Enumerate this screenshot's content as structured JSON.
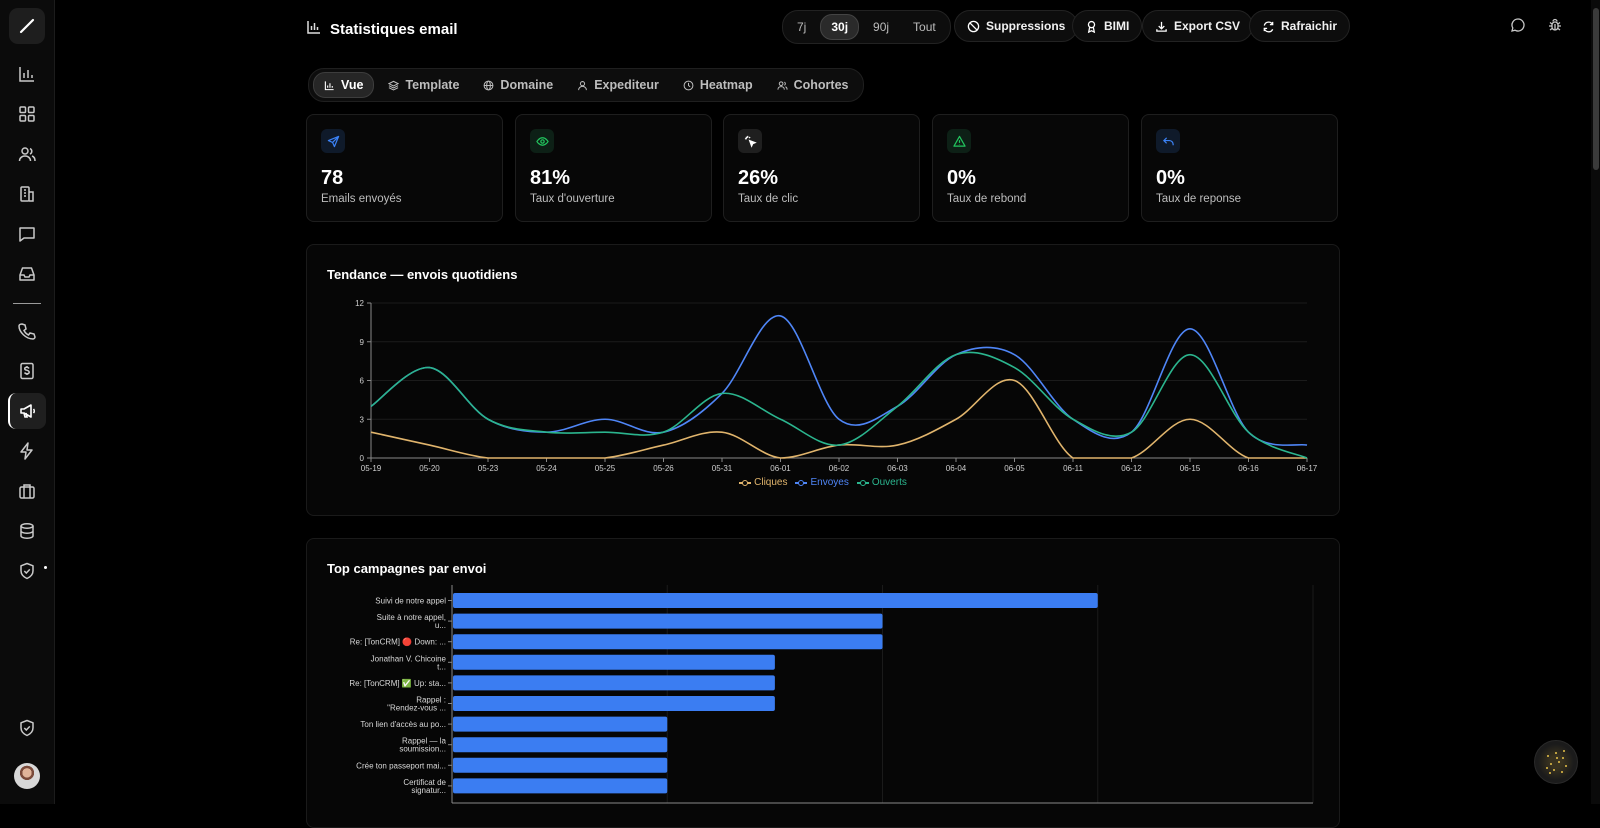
{
  "sidebar": {
    "items": [
      {
        "name": "logo",
        "icon": "pen-icon"
      },
      {
        "name": "analytics",
        "icon": "bar-chart-icon"
      },
      {
        "name": "dashboard",
        "icon": "grid-icon"
      },
      {
        "name": "contacts",
        "icon": "users-icon"
      },
      {
        "name": "companies",
        "icon": "building-icon"
      },
      {
        "name": "messages",
        "icon": "chat-icon"
      },
      {
        "name": "inbox",
        "icon": "inbox-icon"
      },
      {
        "name": "calls",
        "icon": "phone-icon"
      },
      {
        "name": "billing",
        "icon": "dollar-icon"
      },
      {
        "name": "campaigns",
        "icon": "megaphone-icon",
        "active": true
      },
      {
        "name": "automations",
        "icon": "lightning-icon"
      },
      {
        "name": "projects",
        "icon": "briefcase-icon"
      },
      {
        "name": "database",
        "icon": "database-icon"
      },
      {
        "name": "security",
        "icon": "shield-icon"
      },
      {
        "name": "admin",
        "icon": "shield-icon"
      }
    ]
  },
  "header": {
    "title": "Statistiques email",
    "ranges": [
      "7j",
      "30j",
      "90j",
      "Tout"
    ],
    "selected_range": "30j",
    "buttons": {
      "suppressions": "Suppressions",
      "bimi": "BIMI",
      "export": "Export CSV",
      "refresh": "Rafraichir"
    }
  },
  "tabs": [
    {
      "label": "Vue",
      "icon": "bar-chart-icon",
      "active": true
    },
    {
      "label": "Template",
      "icon": "layers-icon"
    },
    {
      "label": "Domaine",
      "icon": "globe-icon"
    },
    {
      "label": "Expediteur",
      "icon": "user-icon"
    },
    {
      "label": "Heatmap",
      "icon": "clock-icon"
    },
    {
      "label": "Cohortes",
      "icon": "users-icon"
    }
  ],
  "kpis": [
    {
      "value": "78",
      "label": "Emails envoyés",
      "icon": "send-icon",
      "color": "#3b82f6",
      "bg": "#0f1a2a"
    },
    {
      "value": "81%",
      "label": "Taux d'ouverture",
      "icon": "eye-icon",
      "color": "#22c55e",
      "bg": "#0d2016"
    },
    {
      "value": "26%",
      "label": "Taux de clic",
      "icon": "cursor-click-icon",
      "color": "#ffffff",
      "bg": "#1f1f1f"
    },
    {
      "value": "0%",
      "label": "Taux de rebond",
      "icon": "warning-icon",
      "color": "#22c55e",
      "bg": "#0d2016"
    },
    {
      "value": "0%",
      "label": "Taux de reponse",
      "icon": "reply-icon",
      "color": "#3b82f6",
      "bg": "#0f1a2a"
    }
  ],
  "trend_title": "Tendance — envois quotidiens",
  "campaigns_title": "Top campagnes par envoi",
  "colors": {
    "cliques": "#e0b46c",
    "envoyes": "#4f86f7",
    "ouverts": "#2bb58e",
    "bar": "#3b7df2"
  },
  "chart_data": [
    {
      "type": "line",
      "title": "Tendance — envois quotidiens",
      "x": [
        "05-19",
        "05-20",
        "05-23",
        "05-24",
        "05-25",
        "05-26",
        "05-31",
        "06-01",
        "06-02",
        "06-03",
        "06-04",
        "06-05",
        "06-11",
        "06-12",
        "06-15",
        "06-16",
        "06-17"
      ],
      "ylim": [
        0,
        12
      ],
      "yticks": [
        0,
        3,
        6,
        9,
        12
      ],
      "grid": true,
      "legend": "bottom",
      "series": [
        {
          "name": "Cliques",
          "values": [
            2,
            1,
            0,
            0,
            0,
            1,
            2,
            0,
            1,
            1,
            3,
            6,
            0,
            0,
            3,
            0,
            0
          ]
        },
        {
          "name": "Envoyes",
          "values": [
            4,
            7,
            3,
            2,
            3,
            2,
            5,
            11,
            3,
            4,
            8,
            8,
            3,
            2,
            10,
            2,
            1
          ]
        },
        {
          "name": "Ouverts",
          "values": [
            4,
            7,
            3,
            2,
            2,
            2,
            5,
            3,
            1,
            4,
            8,
            7,
            3,
            2,
            8,
            2,
            0
          ]
        }
      ]
    },
    {
      "type": "bar",
      "orientation": "horizontal",
      "title": "Top campagnes par envoi",
      "categories": [
        [
          "Suivi de notre appel"
        ],
        [
          "Suite à notre appel,",
          "u..."
        ],
        [
          "Re: [TonCRM] 🔴 Down: ..."
        ],
        [
          "Jonathan V. Chicoine",
          "t..."
        ],
        [
          "Re: [TonCRM] ✅ Up: sta..."
        ],
        [
          "Rappel :",
          "\"Rendez-vous ..."
        ],
        [
          "Ton lien d'accès au po..."
        ],
        [
          "Rappel — la",
          "soumission..."
        ],
        [
          "Crée ton passeport mai..."
        ],
        [
          "Certificat de",
          "signatur..."
        ]
      ],
      "values": [
        6,
        4,
        4,
        3,
        3,
        3,
        2,
        2,
        2,
        2
      ],
      "xlim": [
        0,
        8
      ]
    }
  ]
}
